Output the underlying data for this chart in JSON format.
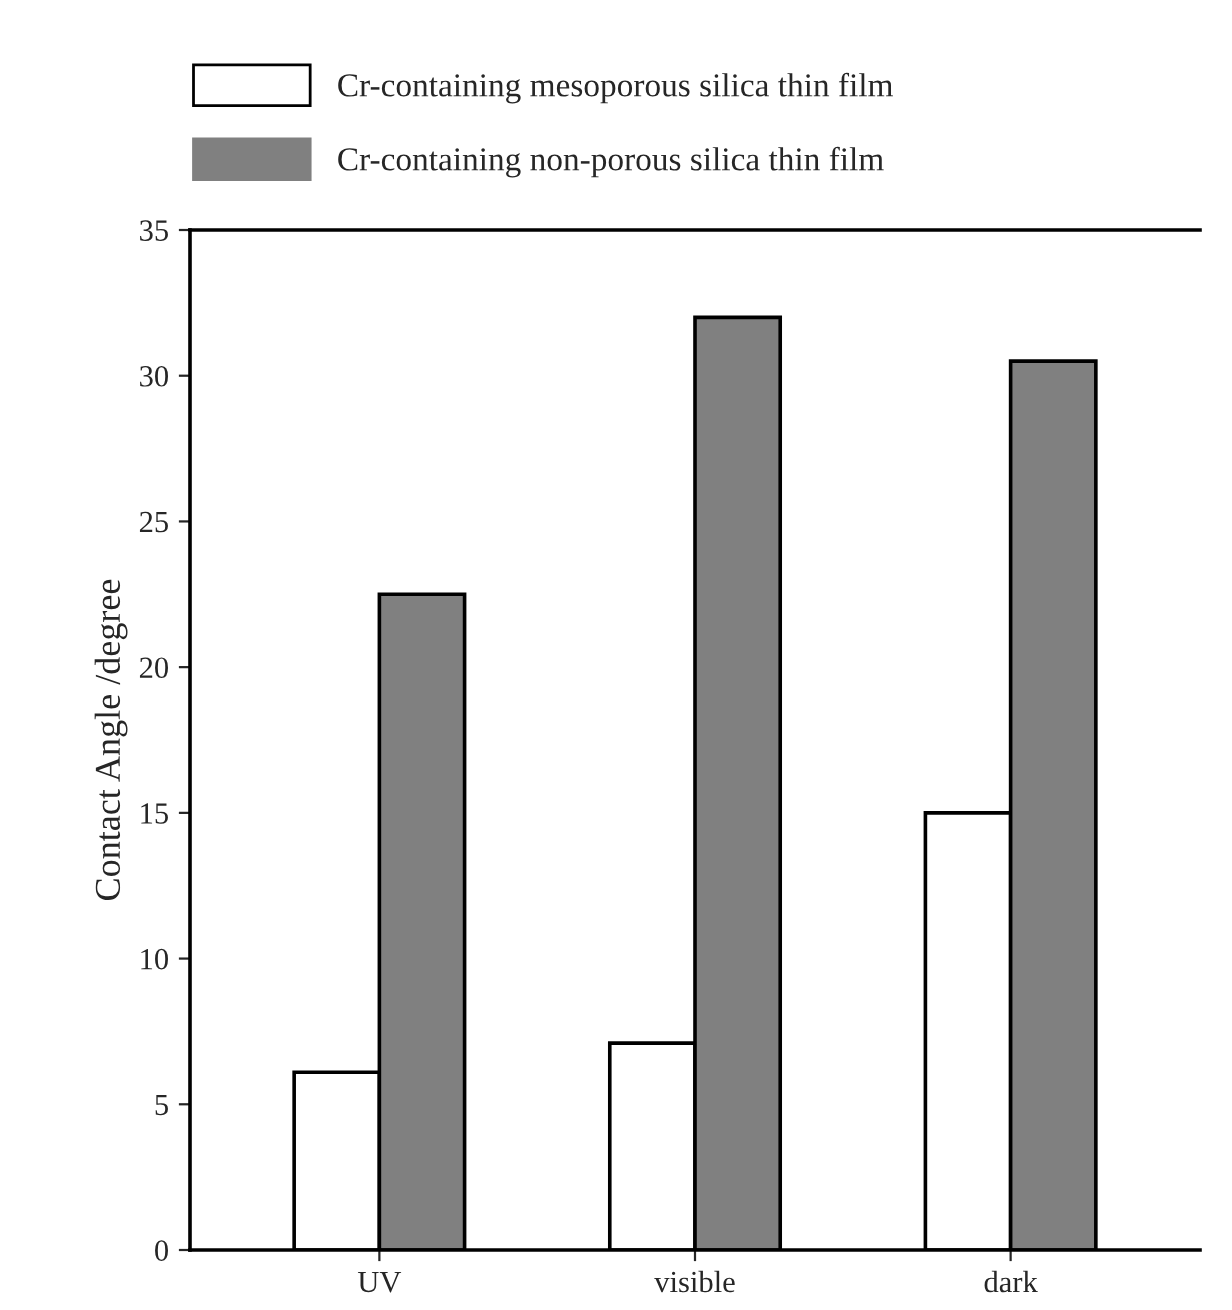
{
  "chart_data": {
    "type": "bar",
    "ylabel": "Contact Angle /degree",
    "categories": [
      "UV",
      "visible",
      "dark"
    ],
    "series": [
      {
        "name": "Cr-containing mesoporous silica thin film",
        "color": "#ffffff",
        "values": [
          6.1,
          7.1,
          15
        ]
      },
      {
        "name": "Cr-containing non-porous silica thin film",
        "color": "#808080",
        "values": [
          22.5,
          32,
          30.5
        ]
      }
    ],
    "ylim": [
      0,
      35
    ],
    "yticks": [
      0,
      5,
      10,
      15,
      20,
      25,
      30,
      35
    ],
    "grid": false,
    "legend": "top"
  }
}
